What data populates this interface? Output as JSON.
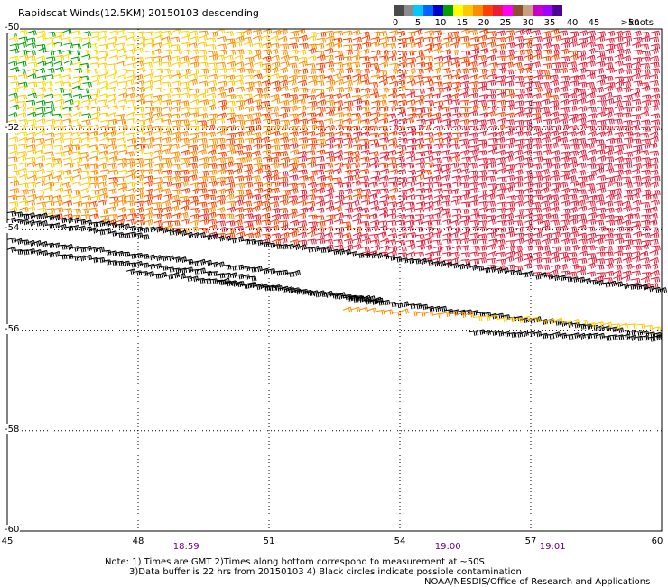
{
  "title": "Rapidscat Winds(12.5KM) 20150103 descending",
  "colorbar": {
    "colors": [
      "#4a4a4a",
      "#8c8c8c",
      "#00c8ff",
      "#0064ff",
      "#0000c8",
      "#00a000",
      "#ffff00",
      "#ffc800",
      "#ff8c00",
      "#ff4000",
      "#e61e3c",
      "#ff00ff",
      "#8c5030",
      "#c8a080",
      "#c800c8",
      "#a000ff",
      "#500096"
    ],
    "labels": [
      "0",
      "5",
      "10",
      "15",
      "20",
      "25",
      "30",
      "35",
      "40",
      "45",
      ">50"
    ],
    "units": "knots"
  },
  "map": {
    "lat_labels": [
      "-50",
      "-52",
      "-54",
      "-56",
      "-58",
      "-60"
    ],
    "lon_labels": [
      "45",
      "48",
      "51",
      "54",
      "57",
      "60"
    ],
    "lat_range": [
      -60,
      -50
    ],
    "lon_range": [
      45,
      60
    ],
    "grid": "dotted",
    "time_labels": [
      {
        "text": "18:59",
        "lon": 49.1
      },
      {
        "text": "19:00",
        "lon": 55.1
      },
      {
        "text": "19:01",
        "lon": 57.5
      }
    ]
  },
  "notes": {
    "line1": "Note: 1) Times are GMT 2)Times along bottom correspond to measurement at ~50S",
    "line2": "3)Data buffer is 22 hrs from 20150103 4) Black circles indicate possible contamination",
    "line3": "NOAA/NESDIS/Office of Research and Applications"
  }
}
